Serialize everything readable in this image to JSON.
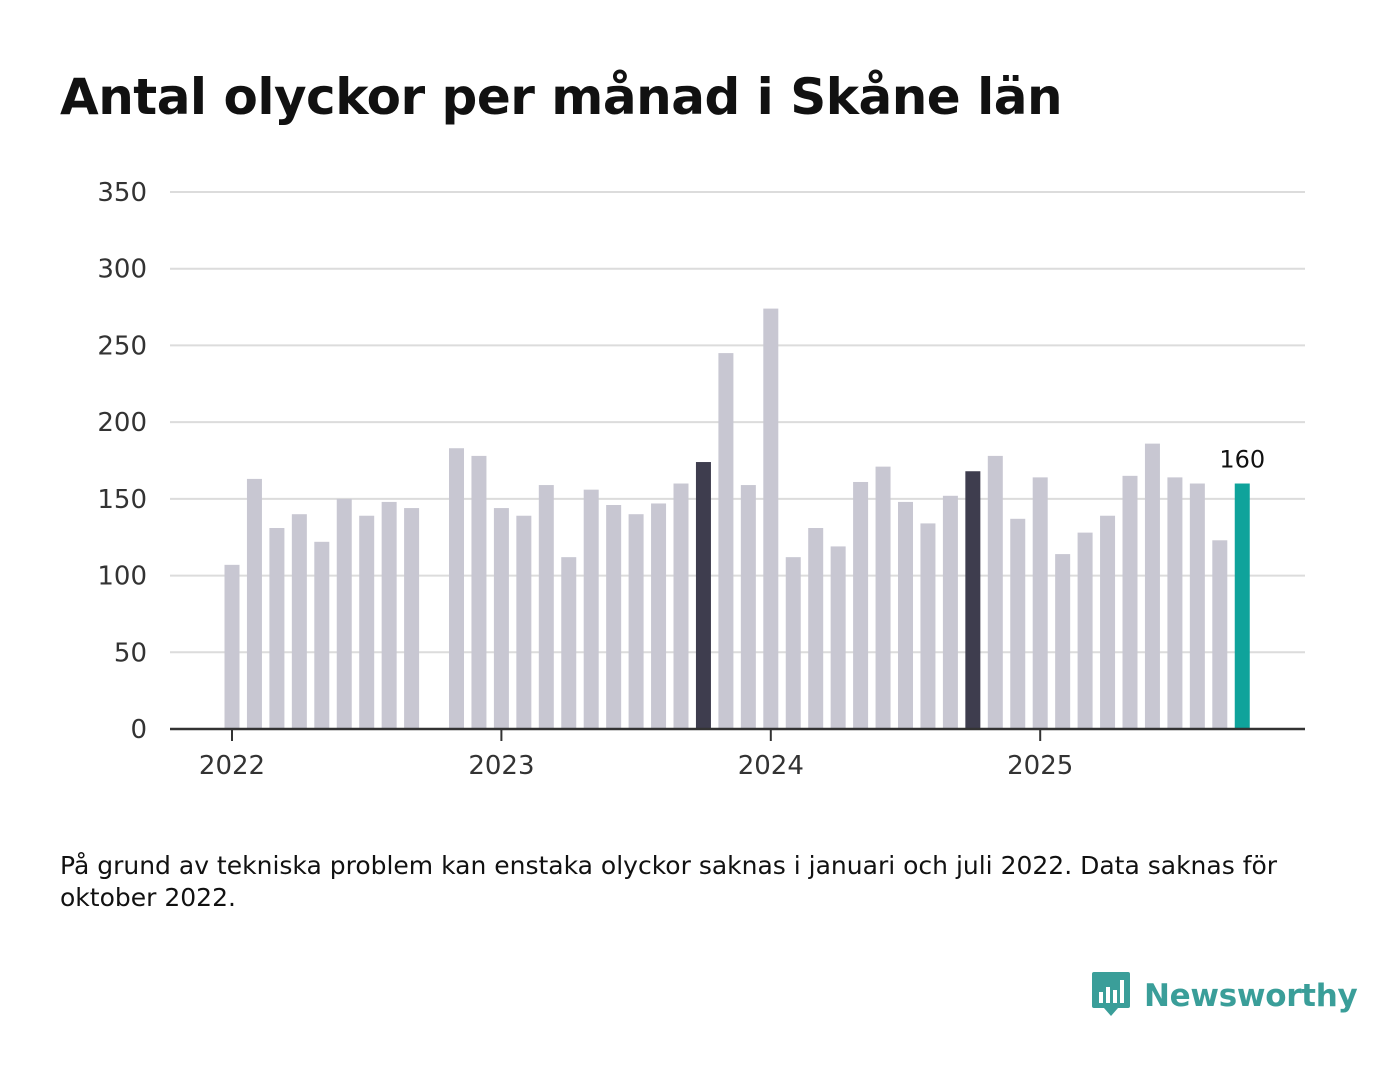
{
  "title": "Antal olyckor per månad i Skåne län",
  "note": "På grund av tekniska problem kan enstaka olyckor saknas i januari och juli 2022. Data saknas för oktober 2022.",
  "brand": {
    "name": "Newsworthy",
    "icon": "newsworthy-logo-icon",
    "color": "#3a9e99"
  },
  "colors": {
    "bar": "#c8c7d2",
    "highlight": "#3e3d4e",
    "latest": "#0fa39b",
    "grid": "#dcdcdc",
    "axis": "#333333"
  },
  "chart_data": {
    "type": "bar",
    "title": "Antal olyckor per månad i Skåne län",
    "xlabel": "",
    "ylabel": "",
    "ylim": [
      0,
      350
    ],
    "yticks": [
      0,
      50,
      100,
      150,
      200,
      250,
      300,
      350
    ],
    "xtick_labels": [
      {
        "label": "2022",
        "index": 0
      },
      {
        "label": "2023",
        "index": 12
      },
      {
        "label": "2024",
        "index": 24
      },
      {
        "label": "2025",
        "index": 36
      }
    ],
    "categories": [
      "2022-01",
      "2022-02",
      "2022-03",
      "2022-04",
      "2022-05",
      "2022-06",
      "2022-07",
      "2022-08",
      "2022-09",
      "2022-10",
      "2022-11",
      "2022-12",
      "2023-01",
      "2023-02",
      "2023-03",
      "2023-04",
      "2023-05",
      "2023-06",
      "2023-07",
      "2023-08",
      "2023-09",
      "2023-10",
      "2023-11",
      "2023-12",
      "2024-01",
      "2024-02",
      "2024-03",
      "2024-04",
      "2024-05",
      "2024-06",
      "2024-07",
      "2024-08",
      "2024-09",
      "2024-10",
      "2024-11",
      "2024-12",
      "2025-01",
      "2025-02",
      "2025-03",
      "2025-04",
      "2025-05",
      "2025-06",
      "2025-07",
      "2025-08",
      "2025-09",
      "2025-10"
    ],
    "values": [
      107,
      163,
      131,
      140,
      122,
      150,
      139,
      148,
      144,
      null,
      183,
      178,
      144,
      139,
      159,
      112,
      156,
      146,
      140,
      147,
      160,
      174,
      245,
      159,
      274,
      112,
      131,
      119,
      161,
      171,
      148,
      134,
      152,
      168,
      178,
      137,
      164,
      114,
      128,
      139,
      165,
      186,
      164,
      160,
      123,
      160
    ],
    "highlight_categories": [
      "2023-10",
      "2024-10"
    ],
    "latest_category": "2025-10",
    "data_labels": [
      {
        "category": "2025-10",
        "text": "160"
      }
    ],
    "grid": true,
    "legend": "none"
  }
}
